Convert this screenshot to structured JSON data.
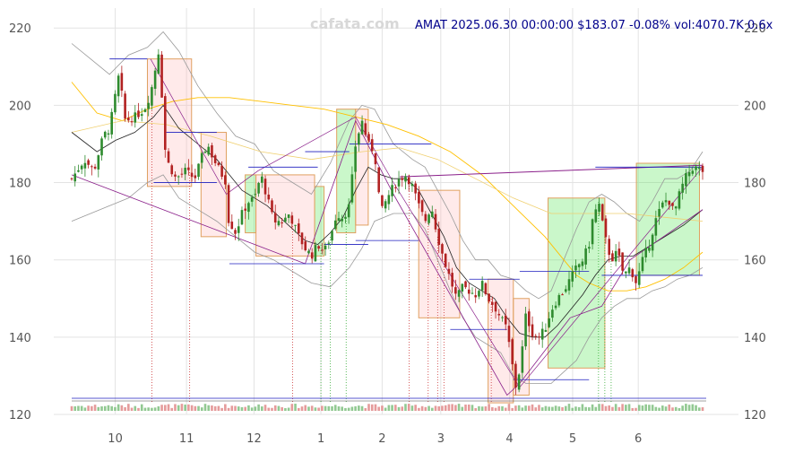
{
  "watermark": "cafata.com",
  "header": "AMAT 2025.06.30 00:00:00 $183.07 -0.08% vol:4070.7K 0.6x",
  "chart_data": {
    "type": "candlestick",
    "ticker": "AMAT",
    "last_close": 183.07,
    "change_pct": -0.08,
    "volume": "4070.7K",
    "volume_ratio": "0.6x",
    "ylim": [
      120,
      224
    ],
    "yticks": [
      120,
      140,
      160,
      180,
      200,
      220
    ],
    "xlim": [
      0,
      1
    ],
    "xticks": [
      {
        "label": "10",
        "pos": 0.069
      },
      {
        "label": "11",
        "pos": 0.182
      },
      {
        "label": "12",
        "pos": 0.289
      },
      {
        "label": "1",
        "pos": 0.395
      },
      {
        "label": "2",
        "pos": 0.492
      },
      {
        "label": "3",
        "pos": 0.585
      },
      {
        "label": "4",
        "pos": 0.694
      },
      {
        "label": "5",
        "pos": 0.794
      },
      {
        "label": "6",
        "pos": 0.898
      }
    ],
    "grid": true,
    "close_path": [
      [
        0.0,
        181
      ],
      [
        0.02,
        186
      ],
      [
        0.035,
        183
      ],
      [
        0.05,
        192
      ],
      [
        0.06,
        194
      ],
      [
        0.075,
        208
      ],
      [
        0.085,
        196
      ],
      [
        0.1,
        197
      ],
      [
        0.115,
        199
      ],
      [
        0.125,
        203
      ],
      [
        0.14,
        216
      ],
      [
        0.145,
        193
      ],
      [
        0.15,
        186
      ],
      [
        0.165,
        181
      ],
      [
        0.18,
        183
      ],
      [
        0.195,
        181
      ],
      [
        0.205,
        186
      ],
      [
        0.215,
        190
      ],
      [
        0.225,
        186
      ],
      [
        0.235,
        183
      ],
      [
        0.245,
        180
      ],
      [
        0.24,
        173
      ],
      [
        0.25,
        170
      ],
      [
        0.26,
        167
      ],
      [
        0.27,
        172
      ],
      [
        0.28,
        175
      ],
      [
        0.29,
        176
      ],
      [
        0.3,
        182
      ],
      [
        0.31,
        176
      ],
      [
        0.32,
        170
      ],
      [
        0.335,
        170
      ],
      [
        0.345,
        172
      ],
      [
        0.36,
        166
      ],
      [
        0.37,
        163
      ],
      [
        0.38,
        161
      ],
      [
        0.39,
        164
      ],
      [
        0.4,
        162
      ],
      [
        0.41,
        166
      ],
      [
        0.42,
        172
      ],
      [
        0.43,
        171
      ],
      [
        0.44,
        174
      ],
      [
        0.45,
        190
      ],
      [
        0.46,
        196
      ],
      [
        0.47,
        190
      ],
      [
        0.48,
        188
      ],
      [
        0.49,
        172
      ],
      [
        0.5,
        176
      ],
      [
        0.51,
        179
      ],
      [
        0.52,
        181
      ],
      [
        0.53,
        182
      ],
      [
        0.54,
        179
      ],
      [
        0.55,
        174
      ],
      [
        0.56,
        170
      ],
      [
        0.57,
        174
      ],
      [
        0.58,
        166
      ],
      [
        0.59,
        160
      ],
      [
        0.6,
        155
      ],
      [
        0.61,
        150
      ],
      [
        0.62,
        153
      ],
      [
        0.63,
        152
      ],
      [
        0.64,
        151
      ],
      [
        0.65,
        154
      ],
      [
        0.66,
        150
      ],
      [
        0.67,
        148
      ],
      [
        0.68,
        145
      ],
      [
        0.69,
        142
      ],
      [
        0.695,
        136
      ],
      [
        0.705,
        126
      ],
      [
        0.715,
        138
      ],
      [
        0.72,
        146
      ],
      [
        0.73,
        141
      ],
      [
        0.74,
        140
      ],
      [
        0.75,
        142
      ],
      [
        0.76,
        147
      ],
      [
        0.77,
        150
      ],
      [
        0.78,
        152
      ],
      [
        0.79,
        155
      ],
      [
        0.8,
        158
      ],
      [
        0.81,
        160
      ],
      [
        0.82,
        164
      ],
      [
        0.825,
        170
      ],
      [
        0.835,
        175
      ],
      [
        0.845,
        166
      ],
      [
        0.855,
        160
      ],
      [
        0.865,
        162
      ],
      [
        0.875,
        156
      ],
      [
        0.885,
        158
      ],
      [
        0.895,
        154
      ],
      [
        0.905,
        160
      ],
      [
        0.915,
        164
      ],
      [
        0.925,
        170
      ],
      [
        0.935,
        174
      ],
      [
        0.945,
        176
      ],
      [
        0.955,
        172
      ],
      [
        0.965,
        178
      ],
      [
        0.975,
        182
      ],
      [
        0.985,
        184
      ],
      [
        1.0,
        183
      ]
    ],
    "ma_short": [
      [
        0.0,
        193
      ],
      [
        0.04,
        188
      ],
      [
        0.07,
        191
      ],
      [
        0.1,
        193
      ],
      [
        0.13,
        197
      ],
      [
        0.145,
        200
      ],
      [
        0.17,
        194
      ],
      [
        0.2,
        190
      ],
      [
        0.23,
        186
      ],
      [
        0.25,
        182
      ],
      [
        0.27,
        178
      ],
      [
        0.29,
        176
      ],
      [
        0.31,
        174
      ],
      [
        0.33,
        171
      ],
      [
        0.35,
        168
      ],
      [
        0.37,
        165
      ],
      [
        0.39,
        164
      ],
      [
        0.41,
        167
      ],
      [
        0.43,
        171
      ],
      [
        0.45,
        178
      ],
      [
        0.47,
        184
      ],
      [
        0.49,
        182
      ],
      [
        0.51,
        181
      ],
      [
        0.53,
        181
      ],
      [
        0.55,
        178
      ],
      [
        0.57,
        172
      ],
      [
        0.59,
        166
      ],
      [
        0.61,
        158
      ],
      [
        0.63,
        154
      ],
      [
        0.65,
        152
      ],
      [
        0.67,
        150
      ],
      [
        0.69,
        145
      ],
      [
        0.71,
        141
      ],
      [
        0.73,
        140
      ],
      [
        0.75,
        140
      ],
      [
        0.77,
        143
      ],
      [
        0.79,
        147
      ],
      [
        0.81,
        151
      ],
      [
        0.83,
        156
      ],
      [
        0.85,
        160
      ],
      [
        0.87,
        161
      ],
      [
        0.89,
        161
      ],
      [
        0.91,
        163
      ],
      [
        0.93,
        165
      ],
      [
        0.95,
        167
      ],
      [
        0.97,
        169
      ],
      [
        1.0,
        173
      ]
    ],
    "ma_long": [
      [
        0.0,
        206
      ],
      [
        0.04,
        198
      ],
      [
        0.08,
        196
      ],
      [
        0.12,
        199
      ],
      [
        0.16,
        201
      ],
      [
        0.2,
        202
      ],
      [
        0.25,
        202
      ],
      [
        0.3,
        201
      ],
      [
        0.35,
        200
      ],
      [
        0.4,
        199
      ],
      [
        0.45,
        197
      ],
      [
        0.5,
        195
      ],
      [
        0.55,
        192
      ],
      [
        0.6,
        188
      ],
      [
        0.65,
        182
      ],
      [
        0.7,
        174
      ],
      [
        0.75,
        166
      ],
      [
        0.78,
        160
      ],
      [
        0.8,
        156
      ],
      [
        0.82,
        154
      ],
      [
        0.85,
        152
      ],
      [
        0.88,
        152
      ],
      [
        0.91,
        153
      ],
      [
        0.94,
        155
      ],
      [
        0.97,
        158
      ],
      [
        1.0,
        162
      ]
    ],
    "ma_mid": [
      [
        0.0,
        193
      ],
      [
        0.08,
        196
      ],
      [
        0.15,
        195
      ],
      [
        0.22,
        192
      ],
      [
        0.3,
        188
      ],
      [
        0.38,
        186
      ],
      [
        0.46,
        188
      ],
      [
        0.52,
        189
      ],
      [
        0.58,
        186
      ],
      [
        0.64,
        181
      ],
      [
        0.7,
        176
      ],
      [
        0.76,
        172
      ],
      [
        0.82,
        172
      ],
      [
        0.88,
        172
      ],
      [
        0.94,
        171
      ],
      [
        1.0,
        170
      ]
    ],
    "bb_upper": [
      [
        0.0,
        216
      ],
      [
        0.03,
        212
      ],
      [
        0.06,
        208
      ],
      [
        0.09,
        213
      ],
      [
        0.12,
        215
      ],
      [
        0.145,
        219
      ],
      [
        0.17,
        214
      ],
      [
        0.2,
        205
      ],
      [
        0.23,
        198
      ],
      [
        0.26,
        192
      ],
      [
        0.29,
        190
      ],
      [
        0.32,
        183
      ],
      [
        0.35,
        180
      ],
      [
        0.38,
        177
      ],
      [
        0.41,
        185
      ],
      [
        0.44,
        196
      ],
      [
        0.46,
        200
      ],
      [
        0.48,
        199
      ],
      [
        0.51,
        190
      ],
      [
        0.54,
        186
      ],
      [
        0.56,
        184
      ],
      [
        0.58,
        178
      ],
      [
        0.6,
        172
      ],
      [
        0.62,
        165
      ],
      [
        0.64,
        160
      ],
      [
        0.66,
        160
      ],
      [
        0.68,
        156
      ],
      [
        0.7,
        155
      ],
      [
        0.72,
        152
      ],
      [
        0.74,
        150
      ],
      [
        0.76,
        152
      ],
      [
        0.78,
        160
      ],
      [
        0.8,
        168
      ],
      [
        0.82,
        175
      ],
      [
        0.84,
        177
      ],
      [
        0.86,
        175
      ],
      [
        0.88,
        172
      ],
      [
        0.9,
        170
      ],
      [
        0.92,
        175
      ],
      [
        0.94,
        181
      ],
      [
        0.96,
        181
      ],
      [
        0.98,
        183
      ],
      [
        1.0,
        188
      ]
    ],
    "bb_lower": [
      [
        0.0,
        170
      ],
      [
        0.03,
        172
      ],
      [
        0.06,
        174
      ],
      [
        0.09,
        176
      ],
      [
        0.12,
        180
      ],
      [
        0.145,
        182
      ],
      [
        0.17,
        176
      ],
      [
        0.2,
        173
      ],
      [
        0.23,
        170
      ],
      [
        0.26,
        166
      ],
      [
        0.29,
        162
      ],
      [
        0.32,
        160
      ],
      [
        0.35,
        157
      ],
      [
        0.38,
        154
      ],
      [
        0.41,
        153
      ],
      [
        0.44,
        158
      ],
      [
        0.46,
        163
      ],
      [
        0.48,
        170
      ],
      [
        0.51,
        172
      ],
      [
        0.54,
        172
      ],
      [
        0.56,
        168
      ],
      [
        0.58,
        160
      ],
      [
        0.6,
        152
      ],
      [
        0.62,
        145
      ],
      [
        0.64,
        140
      ],
      [
        0.66,
        138
      ],
      [
        0.68,
        136
      ],
      [
        0.7,
        130
      ],
      [
        0.72,
        128
      ],
      [
        0.74,
        128
      ],
      [
        0.76,
        128
      ],
      [
        0.78,
        131
      ],
      [
        0.8,
        134
      ],
      [
        0.82,
        140
      ],
      [
        0.84,
        145
      ],
      [
        0.86,
        148
      ],
      [
        0.88,
        150
      ],
      [
        0.9,
        150
      ],
      [
        0.92,
        152
      ],
      [
        0.94,
        153
      ],
      [
        0.96,
        155
      ],
      [
        0.98,
        156
      ],
      [
        1.0,
        158
      ]
    ],
    "zigzag": [
      [
        0.0,
        182
      ],
      [
        0.37,
        159
      ],
      [
        0.45,
        196
      ],
      [
        0.51,
        177
      ],
      [
        0.69,
        125
      ],
      [
        0.71,
        128
      ],
      [
        0.79,
        145
      ],
      [
        0.84,
        148
      ],
      [
        0.885,
        160
      ],
      [
        1.0,
        173
      ]
    ],
    "zigzag2": [
      [
        0.125,
        212
      ],
      [
        0.245,
        177
      ],
      [
        0.295,
        183
      ],
      [
        0.45,
        197
      ],
      [
        0.51,
        180
      ],
      [
        0.71,
        127
      ],
      [
        1.0,
        184
      ]
    ],
    "trend": [
      [
        0.52,
        181.5
      ],
      [
        1.0,
        184.5
      ]
    ],
    "levels": [
      {
        "x0": 0.06,
        "x1": 0.12,
        "y": 212
      },
      {
        "x0": 0.15,
        "x1": 0.23,
        "y": 193
      },
      {
        "x0": 0.13,
        "x1": 0.23,
        "y": 180
      },
      {
        "x0": 0.28,
        "x1": 0.39,
        "y": 184
      },
      {
        "x0": 0.25,
        "x1": 0.4,
        "y": 159
      },
      {
        "x0": 0.37,
        "x1": 0.44,
        "y": 188
      },
      {
        "x0": 0.4,
        "x1": 0.47,
        "y": 164
      },
      {
        "x0": 0.44,
        "x1": 0.57,
        "y": 190
      },
      {
        "x0": 0.45,
        "x1": 0.55,
        "y": 165
      },
      {
        "x0": 0.6,
        "x1": 0.69,
        "y": 142
      },
      {
        "x0": 0.63,
        "x1": 0.71,
        "y": 155
      },
      {
        "x0": 0.71,
        "x1": 0.82,
        "y": 157
      },
      {
        "x0": 0.7,
        "x1": 0.82,
        "y": 129
      },
      {
        "x0": 0.83,
        "x1": 1.0,
        "y": 184
      },
      {
        "x0": 0.84,
        "x1": 1.0,
        "y": 156
      }
    ],
    "zones": [
      {
        "x0": 0.12,
        "x1": 0.19,
        "y0": 179,
        "y1": 212,
        "kind": "down"
      },
      {
        "x0": 0.205,
        "x1": 0.245,
        "y0": 166,
        "y1": 193,
        "kind": "down"
      },
      {
        "x0": 0.275,
        "x1": 0.292,
        "y0": 167,
        "y1": 182,
        "kind": "up"
      },
      {
        "x0": 0.292,
        "x1": 0.385,
        "y0": 161,
        "y1": 182,
        "kind": "down"
      },
      {
        "x0": 0.385,
        "x1": 0.4,
        "y0": 161,
        "y1": 179,
        "kind": "up"
      },
      {
        "x0": 0.42,
        "x1": 0.45,
        "y0": 167,
        "y1": 199,
        "kind": "up"
      },
      {
        "x0": 0.45,
        "x1": 0.47,
        "y0": 169,
        "y1": 199,
        "kind": "down"
      },
      {
        "x0": 0.55,
        "x1": 0.615,
        "y0": 145,
        "y1": 178,
        "kind": "down"
      },
      {
        "x0": 0.66,
        "x1": 0.7,
        "y0": 123,
        "y1": 155,
        "kind": "down"
      },
      {
        "x0": 0.7,
        "x1": 0.725,
        "y0": 125,
        "y1": 150,
        "kind": "down"
      },
      {
        "x0": 0.755,
        "x1": 0.845,
        "y0": 132,
        "y1": 176,
        "kind": "up"
      },
      {
        "x0": 0.895,
        "x1": 0.995,
        "y0": 156,
        "y1": 185,
        "kind": "up"
      }
    ],
    "signals": [
      {
        "x": 0.127,
        "c": "r"
      },
      {
        "x": 0.187,
        "c": "r"
      },
      {
        "x": 0.35,
        "c": "r"
      },
      {
        "x": 0.395,
        "c": "g"
      },
      {
        "x": 0.41,
        "c": "g"
      },
      {
        "x": 0.435,
        "c": "g"
      },
      {
        "x": 0.535,
        "c": "r"
      },
      {
        "x": 0.565,
        "c": "r"
      },
      {
        "x": 0.58,
        "c": "r"
      },
      {
        "x": 0.59,
        "c": "r"
      },
      {
        "x": 0.665,
        "c": "r"
      },
      {
        "x": 0.835,
        "c": "g"
      },
      {
        "x": 0.845,
        "c": "g"
      },
      {
        "x": 0.855,
        "c": "g"
      }
    ]
  }
}
